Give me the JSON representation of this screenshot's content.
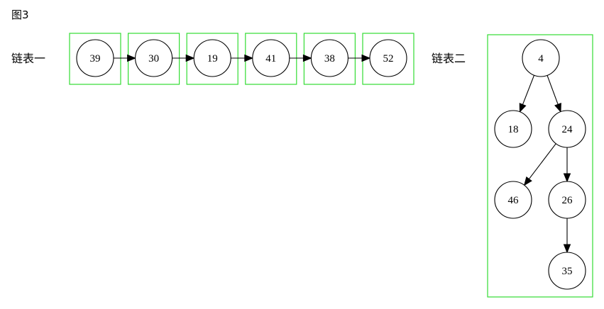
{
  "figure_title": "图3",
  "box_color": "#33dd33",
  "list1": {
    "label": "链表一",
    "nodes": [
      "39",
      "30",
      "19",
      "41",
      "38",
      "52"
    ]
  },
  "list2": {
    "label": "链表二",
    "nodes": [
      {
        "id": "n4",
        "label": "4"
      },
      {
        "id": "n18",
        "label": "18"
      },
      {
        "id": "n24",
        "label": "24"
      },
      {
        "id": "n46",
        "label": "46"
      },
      {
        "id": "n26",
        "label": "26"
      },
      {
        "id": "n35",
        "label": "35"
      }
    ],
    "edges": [
      {
        "from": "n4",
        "to": "n18"
      },
      {
        "from": "n4",
        "to": "n24"
      },
      {
        "from": "n24",
        "to": "n46"
      },
      {
        "from": "n24",
        "to": "n26"
      },
      {
        "from": "n26",
        "to": "n35"
      }
    ]
  }
}
